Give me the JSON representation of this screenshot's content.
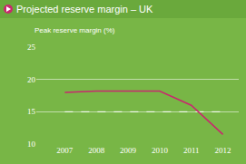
{
  "chart_data": {
    "type": "line",
    "title": "Projected reserve margin – UK",
    "y_label": "Peak reserve margin (%)",
    "categories": [
      "2007",
      "2008",
      "2009",
      "2010",
      "2011",
      "2012"
    ],
    "series": [
      {
        "color": "#c8286e",
        "line_style": "solid",
        "values": [
          18,
          18.2,
          18.2,
          18.2,
          16,
          11.5
        ]
      },
      {
        "color": "#ffffff",
        "line_style": "dashed",
        "values": [
          15,
          15,
          15,
          15,
          15,
          15
        ]
      }
    ],
    "ylim": [
      10,
      25
    ],
    "yticks": [
      10,
      15,
      20,
      25
    ],
    "grid": true
  }
}
